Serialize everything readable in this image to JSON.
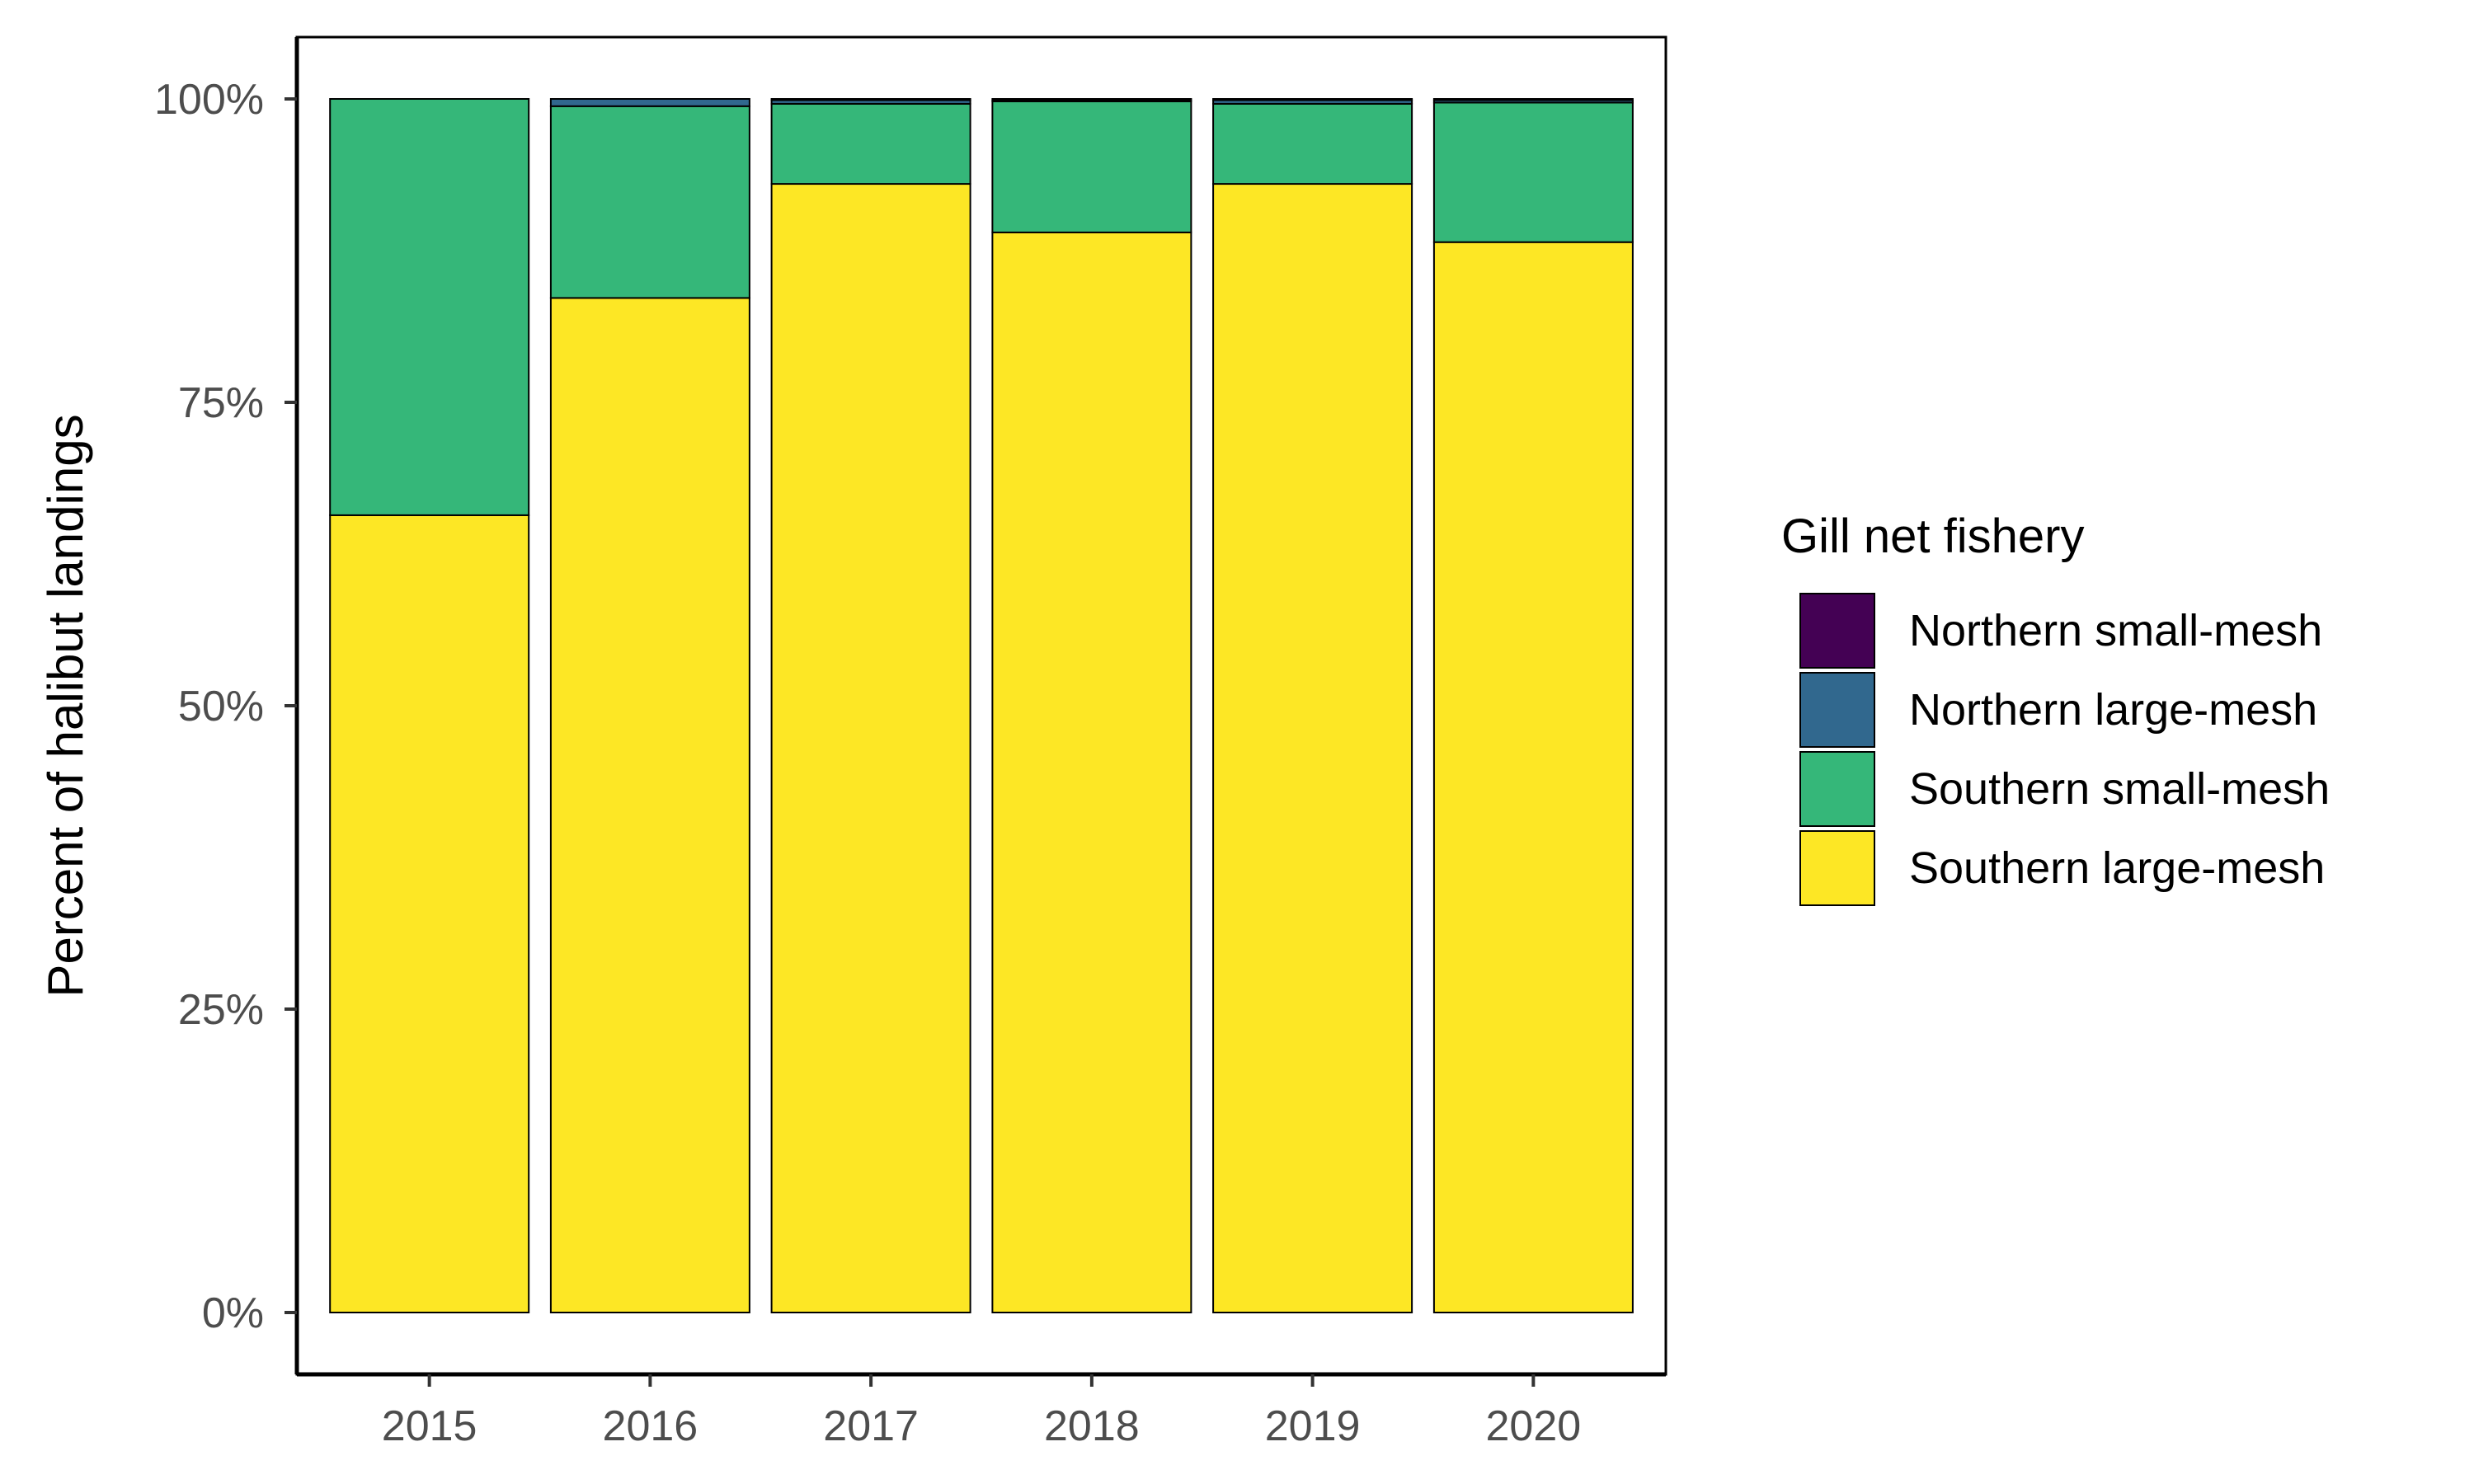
{
  "chart_data": {
    "type": "bar",
    "stacked": true,
    "title": "",
    "xlabel": "",
    "ylabel": "Percent of halibut landings",
    "ylim": [
      0,
      1
    ],
    "y_ticks": [
      0,
      0.25,
      0.5,
      0.75,
      1.0
    ],
    "y_tick_labels": [
      "0%",
      "25%",
      "50%",
      "75%",
      "100%"
    ],
    "categories": [
      "2015",
      "2016",
      "2017",
      "2018",
      "2019",
      "2020"
    ],
    "legend": {
      "title": "Gill net fishery",
      "position": "right"
    },
    "series": [
      {
        "name": "Southern large-mesh",
        "color": "#FDE725",
        "values": [
          0.657,
          0.836,
          0.93,
          0.89,
          0.93,
          0.882
        ]
      },
      {
        "name": "Southern small-mesh",
        "color": "#35B779",
        "values": [
          0.343,
          0.158,
          0.066,
          0.108,
          0.066,
          0.115
        ]
      },
      {
        "name": "Northern large-mesh",
        "color": "#31688E",
        "values": [
          0.0,
          0.006,
          0.003,
          0.001,
          0.003,
          0.002
        ]
      },
      {
        "name": "Northern small-mesh",
        "color": "#440154",
        "values": [
          0.0,
          0.0,
          0.001,
          0.001,
          0.001,
          0.001
        ]
      }
    ],
    "legend_order": [
      "Northern small-mesh",
      "Northern large-mesh",
      "Southern small-mesh",
      "Southern large-mesh"
    ],
    "grid": false
  }
}
